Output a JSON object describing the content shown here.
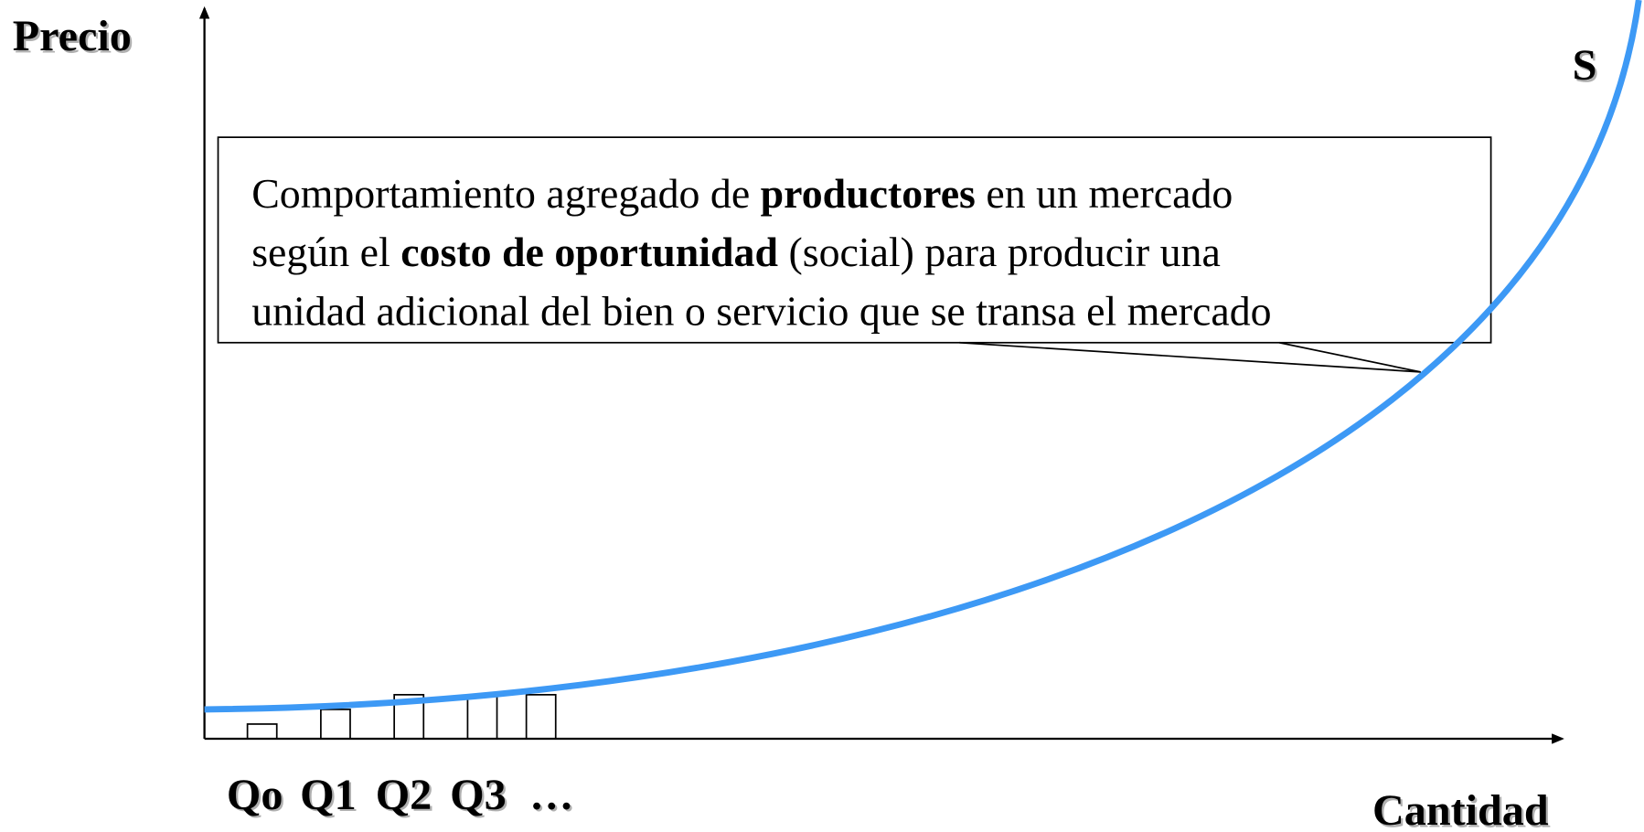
{
  "axes": {
    "y_label": "Precio",
    "x_label": "Cantidad"
  },
  "curve_label": "S",
  "quantity_labels": [
    "Qo",
    "Q1",
    "Q2",
    "Q3",
    "…"
  ],
  "callout": {
    "lines": [
      [
        {
          "text": "Comportamiento agregado de ",
          "bold": false
        },
        {
          "text": "productores",
          "bold": true
        },
        {
          "text": " en un mercado",
          "bold": false
        }
      ],
      [
        {
          "text": "según el ",
          "bold": false
        },
        {
          "text": "costo de oportunidad",
          "bold": true
        },
        {
          "text": " (social) para producir una",
          "bold": false
        }
      ],
      [
        {
          "text": "unidad adicional del bien o servicio que se transa el mercado",
          "bold": false
        }
      ]
    ]
  }
}
